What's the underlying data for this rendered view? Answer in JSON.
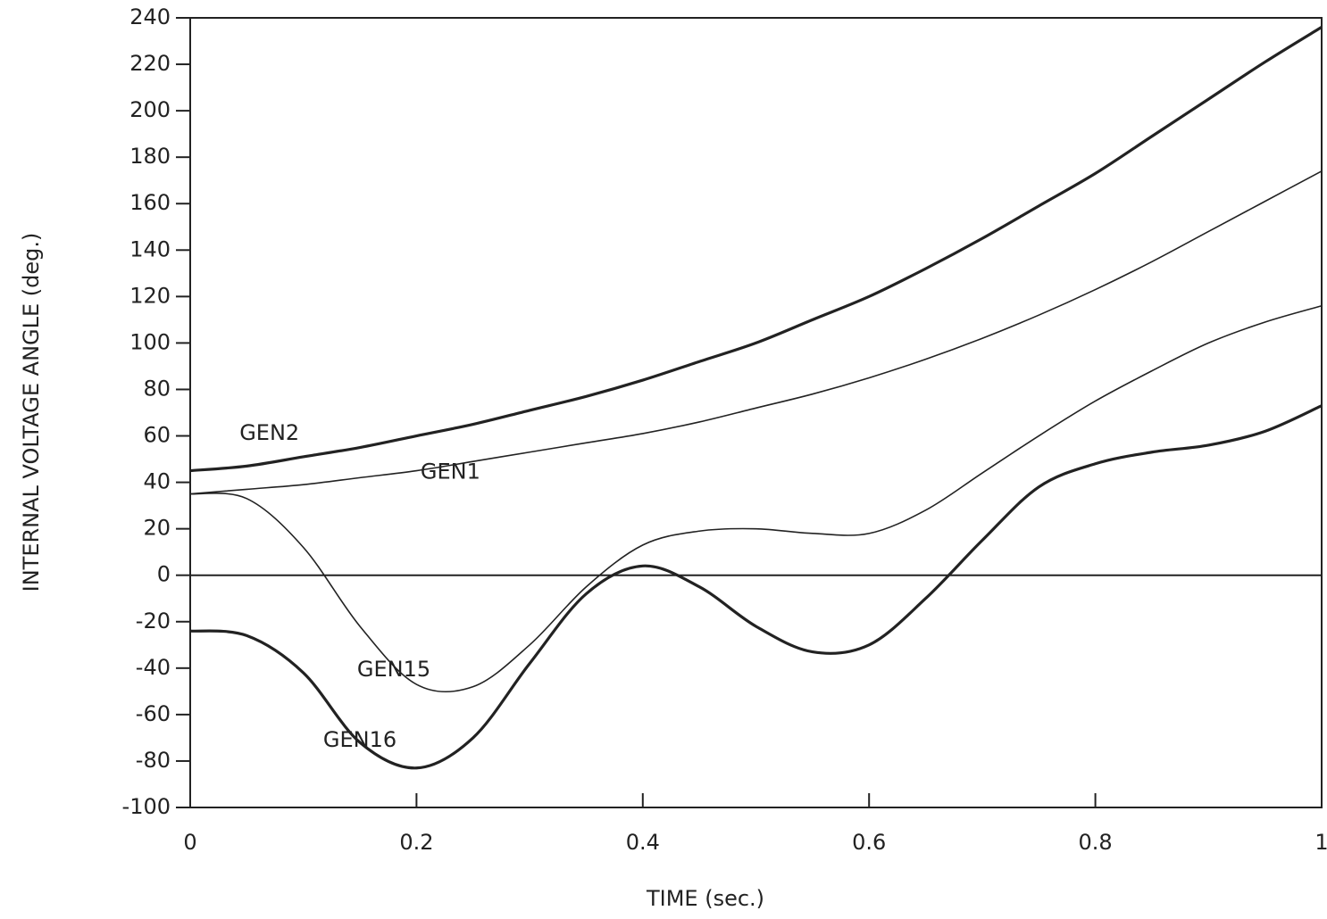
{
  "chart_data": {
    "type": "line",
    "x_label": "TIME (sec.)",
    "y_label": "INTERNAL VOLTAGE ANGLE (deg.)",
    "x": [
      0,
      0.05,
      0.1,
      0.15,
      0.2,
      0.25,
      0.3,
      0.35,
      0.4,
      0.45,
      0.5,
      0.55,
      0.6,
      0.65,
      0.7,
      0.75,
      0.8,
      0.85,
      0.9,
      0.95,
      1
    ],
    "series": [
      {
        "name": "GEN2",
        "color": "#222222",
        "values": [
          45,
          47,
          51,
          55,
          60,
          65,
          71,
          77,
          84,
          92,
          100,
          110,
          120,
          132,
          145,
          159,
          173,
          189,
          205,
          221,
          236
        ]
      },
      {
        "name": "GEN1",
        "color": "#222222",
        "values": [
          35,
          37,
          39,
          42,
          45,
          49,
          53,
          57,
          61,
          66,
          72,
          78,
          85,
          93,
          102,
          112,
          123,
          135,
          148,
          161,
          174
        ]
      },
      {
        "name": "GEN15",
        "color": "#222222",
        "values": [
          35,
          33,
          12,
          -22,
          -47,
          -48,
          -30,
          -5,
          13,
          19,
          20,
          18,
          18,
          28,
          44,
          60,
          75,
          88,
          100,
          109,
          116
        ]
      },
      {
        "name": "GEN16",
        "color": "#222222",
        "values": [
          -24,
          -26,
          -42,
          -72,
          -83,
          -70,
          -38,
          -8,
          4,
          -5,
          -22,
          -33,
          -30,
          -10,
          15,
          38,
          48,
          53,
          56,
          62,
          73
        ]
      }
    ],
    "xlim": [
      0,
      1
    ],
    "xticks": [
      0,
      0.2,
      0.4,
      0.6,
      0.8,
      1
    ],
    "ylim": [
      -100,
      240
    ],
    "yticks": [
      -100,
      -80,
      -60,
      -40,
      -20,
      0,
      20,
      40,
      60,
      80,
      100,
      120,
      140,
      160,
      180,
      200,
      220,
      240
    ],
    "reference_line": 0
  }
}
